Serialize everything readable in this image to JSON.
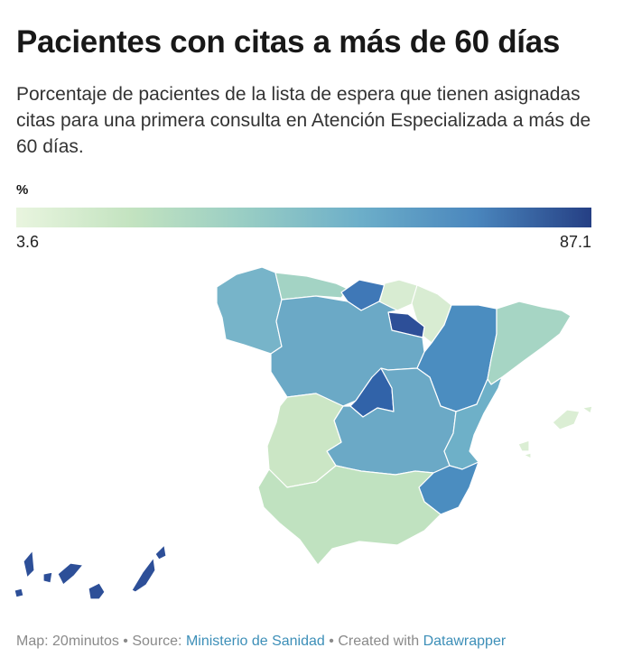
{
  "header": {
    "title": "Pacientes con citas a más de 60 días",
    "subtitle": "Porcentaje de pacientes de la lista de espera que tienen asignadas citas para una primera consulta en Atención Especializada a más de 60 días."
  },
  "legend": {
    "unit": "%",
    "min_label": "3.6",
    "max_label": "87.1",
    "color_scale": [
      "#e9f5df",
      "#c3e3c0",
      "#98cdc4",
      "#6caec9",
      "#4a86bd",
      "#253f84"
    ]
  },
  "map": {
    "regions": [
      {
        "id": "galicia",
        "color": "#77b4c9"
      },
      {
        "id": "asturias",
        "color": "#a3d3c4"
      },
      {
        "id": "cantabria",
        "color": "#3f78b7"
      },
      {
        "id": "pais-vasco",
        "color": "#d8ecd2"
      },
      {
        "id": "navarra",
        "color": "#d8ecd2"
      },
      {
        "id": "la-rioja",
        "color": "#2d4f98"
      },
      {
        "id": "castilla-y-leon",
        "color": "#6ba9c6"
      },
      {
        "id": "aragon",
        "color": "#4b8dc0"
      },
      {
        "id": "cataluna",
        "color": "#a6d5c4"
      },
      {
        "id": "madrid",
        "color": "#3163a9"
      },
      {
        "id": "castilla-la-mancha",
        "color": "#6ba9c6"
      },
      {
        "id": "comunidad-valenciana",
        "color": "#6eb0c8"
      },
      {
        "id": "extremadura",
        "color": "#cbe6c5"
      },
      {
        "id": "andalucia",
        "color": "#c0e2c0"
      },
      {
        "id": "murcia",
        "color": "#4b8dc0"
      },
      {
        "id": "baleares",
        "color": "#dbeed4"
      },
      {
        "id": "canarias",
        "color": "#2d4f98"
      }
    ]
  },
  "footer": {
    "map_credit": "Map: 20minutos",
    "sep1": " • ",
    "source_label": "Source: ",
    "source_link": "Ministerio de Sanidad",
    "sep2": " • ",
    "created_label": "Created with ",
    "created_link": "Datawrapper"
  }
}
